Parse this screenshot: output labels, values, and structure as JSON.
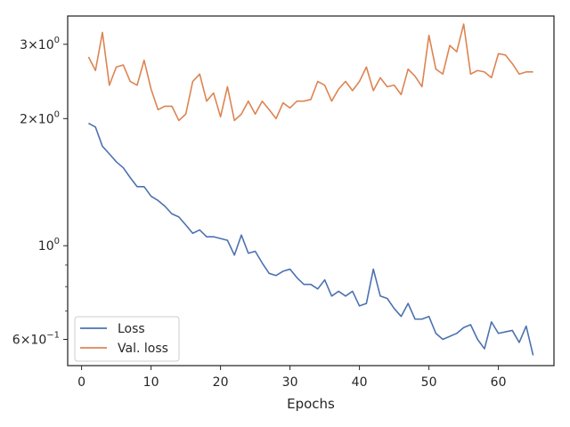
{
  "chart_data": {
    "type": "line",
    "title": "",
    "xlabel": "Epochs",
    "ylabel": "",
    "yscale": "log",
    "xlim": [
      -2,
      68
    ],
    "ylim": [
      0.52,
      3.5
    ],
    "grid": false,
    "legend_position": "bottom-left",
    "x_ticks": [
      0,
      10,
      20,
      30,
      40,
      50,
      60
    ],
    "x_tick_labels": [
      "0",
      "10",
      "20",
      "30",
      "40",
      "50",
      "60"
    ],
    "y_major_ticks": [
      {
        "value": 0.6,
        "base": "6×10",
        "exp": "−1"
      },
      {
        "value": 1.0,
        "base": "10",
        "exp": "0"
      },
      {
        "value": 2.0,
        "base": "2×10",
        "exp": "0"
      },
      {
        "value": 3.0,
        "base": "3×10",
        "exp": "0"
      }
    ],
    "y_minor_ticks": [
      0.7,
      0.8,
      0.9
    ],
    "x": [
      1,
      2,
      3,
      4,
      5,
      6,
      7,
      8,
      9,
      10,
      11,
      12,
      13,
      14,
      15,
      16,
      17,
      18,
      19,
      20,
      21,
      22,
      23,
      24,
      25,
      26,
      27,
      28,
      29,
      30,
      31,
      32,
      33,
      34,
      35,
      36,
      37,
      38,
      39,
      40,
      41,
      42,
      43,
      44,
      45,
      46,
      47,
      48,
      49,
      50,
      51,
      52,
      53,
      54,
      55,
      56,
      57,
      58,
      59,
      60,
      61,
      62,
      63,
      64,
      65
    ],
    "series": [
      {
        "name": "Loss",
        "color": "#4c72b0",
        "values": [
          1.95,
          1.91,
          1.72,
          1.65,
          1.58,
          1.53,
          1.45,
          1.38,
          1.38,
          1.31,
          1.28,
          1.24,
          1.19,
          1.17,
          1.12,
          1.07,
          1.09,
          1.05,
          1.05,
          1.04,
          1.03,
          0.95,
          1.06,
          0.96,
          0.97,
          0.91,
          0.86,
          0.85,
          0.87,
          0.88,
          0.84,
          0.81,
          0.81,
          0.79,
          0.83,
          0.76,
          0.78,
          0.76,
          0.78,
          0.72,
          0.73,
          0.88,
          0.76,
          0.75,
          0.71,
          0.68,
          0.73,
          0.67,
          0.67,
          0.68,
          0.62,
          0.6,
          0.61,
          0.62,
          0.64,
          0.65,
          0.6,
          0.57,
          0.66,
          0.62,
          0.625,
          0.63,
          0.59,
          0.645,
          0.55
        ]
      },
      {
        "name": "Val. loss",
        "color": "#dd8452",
        "values": [
          2.8,
          2.6,
          3.2,
          2.4,
          2.65,
          2.68,
          2.45,
          2.4,
          2.75,
          2.35,
          2.1,
          2.14,
          2.14,
          1.98,
          2.05,
          2.45,
          2.55,
          2.2,
          2.3,
          2.02,
          2.38,
          1.98,
          2.05,
          2.2,
          2.05,
          2.2,
          2.1,
          2.0,
          2.18,
          2.12,
          2.2,
          2.2,
          2.22,
          2.45,
          2.4,
          2.2,
          2.35,
          2.45,
          2.33,
          2.45,
          2.65,
          2.33,
          2.5,
          2.38,
          2.4,
          2.28,
          2.62,
          2.52,
          2.38,
          3.15,
          2.62,
          2.55,
          2.98,
          2.88,
          3.35,
          2.55,
          2.6,
          2.58,
          2.5,
          2.85,
          2.83,
          2.7,
          2.55,
          2.58,
          2.58
        ]
      }
    ]
  }
}
